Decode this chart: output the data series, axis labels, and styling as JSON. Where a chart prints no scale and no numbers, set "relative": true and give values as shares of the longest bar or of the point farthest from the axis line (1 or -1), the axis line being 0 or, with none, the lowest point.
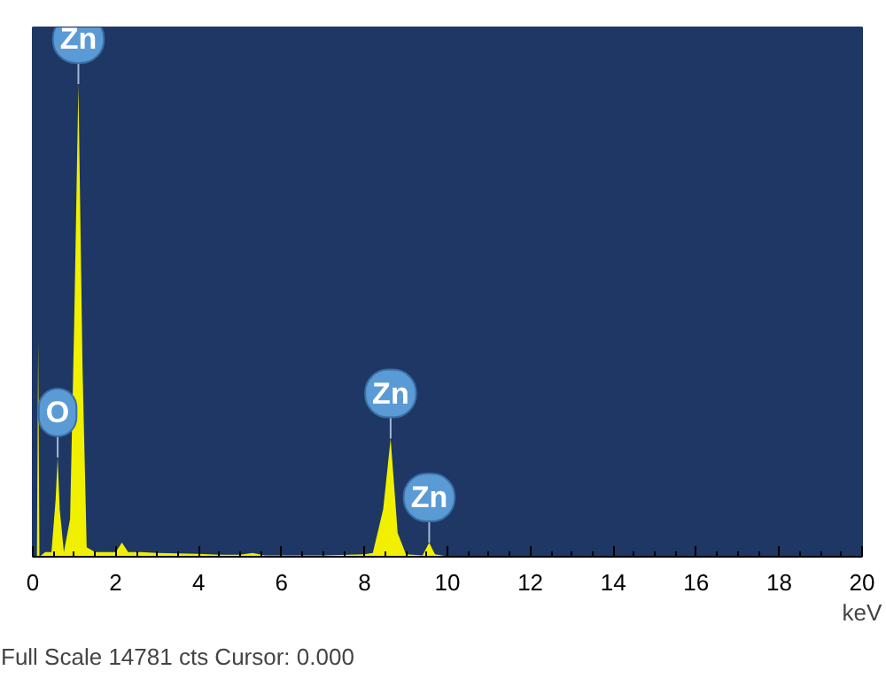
{
  "chart_data": {
    "type": "area",
    "relative": true,
    "xlabel": "keV",
    "x": [
      0,
      0.1,
      0.13,
      0.16,
      0.3,
      0.45,
      0.55,
      0.6,
      0.65,
      0.75,
      0.9,
      1.0,
      1.1,
      1.2,
      1.3,
      1.5,
      2.0,
      2.15,
      2.3,
      2.6,
      3,
      4,
      4.5,
      5,
      5.3,
      5.6,
      6,
      7,
      8,
      8.2,
      8.45,
      8.63,
      8.8,
      9.0,
      9.4,
      9.56,
      9.7,
      10,
      12,
      20
    ],
    "series": [
      {
        "color": "#f0f000",
        "values": [
          0,
          0,
          0.46,
          0,
          0.01,
          0.01,
          0.12,
          0.21,
          0.1,
          0.01,
          0.08,
          0.5,
          1.0,
          0.4,
          0.02,
          0.01,
          0.01,
          0.03,
          0.01,
          0.01,
          0.008,
          0.006,
          0.004,
          0.004,
          0.008,
          0.003,
          0.003,
          0.003,
          0.005,
          0.008,
          0.1,
          0.25,
          0.05,
          0.005,
          0.003,
          0.03,
          0.005,
          0.001,
          0,
          0
        ]
      }
    ],
    "xlim": [
      0,
      20
    ],
    "xticks": [
      0,
      2,
      4,
      6,
      8,
      10,
      12,
      14,
      16,
      18,
      20
    ],
    "tick_labels": "x",
    "grid": false,
    "annotations": [
      {
        "text": "Zn",
        "x": 1.1,
        "y": 1.0
      },
      {
        "text": "O",
        "x": 0.6,
        "y": 0.21
      },
      {
        "text": "Zn",
        "x": 8.63,
        "y": 0.25
      },
      {
        "text": "Zn",
        "x": 9.56,
        "y": 0.03
      },
      "Full Scale 14781 cts Cursor: 0.000"
    ]
  }
}
